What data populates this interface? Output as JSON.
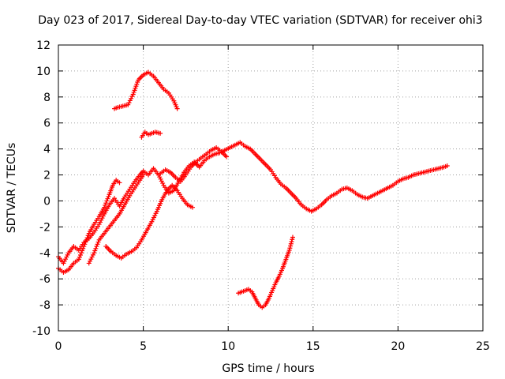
{
  "chart_data": {
    "type": "scatter",
    "title": "Day 023 of 2017, Sidereal Day-to-day VTEC variation (SDTVAR) for receiver ohi3",
    "xlabel": "GPS time / hours",
    "ylabel": "SDTVAR / TECUs",
    "xlim": [
      0,
      25
    ],
    "ylim": [
      -10,
      12
    ],
    "xticks": [
      0,
      5,
      10,
      15,
      20,
      25
    ],
    "yticks": [
      -10,
      -8,
      -6,
      -4,
      -2,
      0,
      2,
      4,
      6,
      8,
      10,
      12
    ],
    "grid": true,
    "marker": "plus",
    "color": "#ff0000",
    "series": [
      {
        "x": [
          0.0,
          0.3,
          0.6,
          0.9,
          1.2,
          1.5,
          1.8,
          2.1,
          2.4,
          2.7,
          3.0,
          3.3,
          3.6,
          3.9,
          4.2,
          4.5,
          4.8,
          5.0,
          5.3,
          5.6,
          5.9,
          6.2,
          6.5,
          6.8,
          7.1,
          7.4,
          7.7,
          8.0,
          8.3,
          8.6,
          8.9,
          9.2,
          9.5,
          9.8,
          10.1,
          10.4,
          10.7,
          11.0,
          11.3,
          11.6,
          11.9,
          12.2,
          12.5,
          12.8,
          13.1,
          13.4,
          13.7,
          14.0,
          14.3,
          14.6,
          14.9,
          15.2,
          15.5,
          15.8,
          16.1,
          16.4,
          16.7,
          17.0,
          17.3,
          17.6,
          17.9,
          18.2,
          18.5,
          18.8,
          19.1,
          19.4,
          19.7,
          20.0,
          20.3,
          20.6,
          20.9,
          21.2,
          21.5,
          21.8,
          22.1,
          22.4,
          22.7,
          22.9
        ],
        "y": [
          -4.3,
          -4.8,
          -4.0,
          -3.5,
          -3.8,
          -3.2,
          -2.9,
          -2.4,
          -1.8,
          -1.0,
          -0.3,
          0.2,
          -0.4,
          0.3,
          0.9,
          1.5,
          2.0,
          2.3,
          2.0,
          2.5,
          2.0,
          1.2,
          0.6,
          0.8,
          1.5,
          2.2,
          2.7,
          3.0,
          2.6,
          3.1,
          3.4,
          3.6,
          3.7,
          3.9,
          4.1,
          4.3,
          4.5,
          4.2,
          4.0,
          3.6,
          3.2,
          2.8,
          2.4,
          1.8,
          1.3,
          1.0,
          0.6,
          0.2,
          -0.3,
          -0.6,
          -0.8,
          -0.6,
          -0.3,
          0.1,
          0.4,
          0.6,
          0.9,
          1.0,
          0.8,
          0.5,
          0.3,
          0.2,
          0.4,
          0.6,
          0.8,
          1.0,
          1.2,
          1.5,
          1.7,
          1.8,
          2.0,
          2.1,
          2.2,
          2.3,
          2.4,
          2.5,
          2.6,
          2.7
        ]
      },
      {
        "x": [
          0.0,
          0.3,
          0.6,
          0.9,
          1.2,
          1.5,
          1.8,
          2.1,
          2.4,
          2.7,
          3.0,
          3.2,
          3.4,
          3.6
        ],
        "y": [
          -5.2,
          -5.5,
          -5.3,
          -4.8,
          -4.5,
          -3.5,
          -2.5,
          -1.8,
          -1.2,
          -0.5,
          0.5,
          1.2,
          1.6,
          1.4
        ]
      },
      {
        "x": [
          1.8,
          2.1,
          2.4,
          2.7,
          3.0,
          3.3,
          3.6,
          3.9,
          4.2,
          4.5,
          4.8,
          5.0
        ],
        "y": [
          -4.8,
          -4.0,
          -3.0,
          -2.5,
          -2.0,
          -1.5,
          -1.0,
          -0.3,
          0.4,
          1.0,
          1.6,
          2.0
        ]
      },
      {
        "x": [
          3.3,
          3.5,
          3.8,
          4.1,
          4.4,
          4.7,
          5.0,
          5.3,
          5.6,
          5.9,
          6.2,
          6.5,
          6.8,
          7.0
        ],
        "y": [
          7.1,
          7.2,
          7.3,
          7.4,
          8.2,
          9.3,
          9.7,
          9.9,
          9.6,
          9.1,
          8.6,
          8.3,
          7.7,
          7.1
        ]
      },
      {
        "x": [
          4.9,
          5.1,
          5.3,
          5.5,
          5.7,
          6.0
        ],
        "y": [
          4.9,
          5.3,
          5.1,
          5.2,
          5.3,
          5.2
        ]
      },
      {
        "x": [
          2.8,
          3.1,
          3.4,
          3.7,
          4.0,
          4.3,
          4.6,
          4.9,
          5.2,
          5.5,
          5.8,
          6.1,
          6.4,
          6.7,
          7.0,
          7.3,
          7.6,
          7.9
        ],
        "y": [
          -3.5,
          -3.9,
          -4.2,
          -4.4,
          -4.1,
          -3.9,
          -3.6,
          -3.0,
          -2.3,
          -1.6,
          -0.8,
          0.1,
          0.8,
          1.2,
          0.8,
          0.2,
          -0.3,
          -0.5
        ]
      },
      {
        "x": [
          6.0,
          6.3,
          6.6,
          6.9,
          7.2,
          7.5,
          7.8,
          8.1,
          8.4,
          8.7,
          9.0,
          9.3,
          9.6,
          9.9
        ],
        "y": [
          2.1,
          2.4,
          2.2,
          1.8,
          1.5,
          2.0,
          2.6,
          3.0,
          3.3,
          3.6,
          3.9,
          4.1,
          3.8,
          3.4
        ]
      },
      {
        "x": [
          10.6,
          10.8,
          11.0,
          11.2,
          11.4,
          11.6,
          11.8,
          12.0,
          12.2,
          12.4,
          12.6,
          12.8,
          13.0,
          13.2,
          13.4,
          13.6,
          13.8
        ],
        "y": [
          -7.1,
          -7.0,
          -6.9,
          -6.8,
          -7.0,
          -7.5,
          -8.0,
          -8.2,
          -8.0,
          -7.5,
          -6.9,
          -6.3,
          -5.8,
          -5.2,
          -4.5,
          -3.8,
          -2.8
        ]
      }
    ]
  }
}
